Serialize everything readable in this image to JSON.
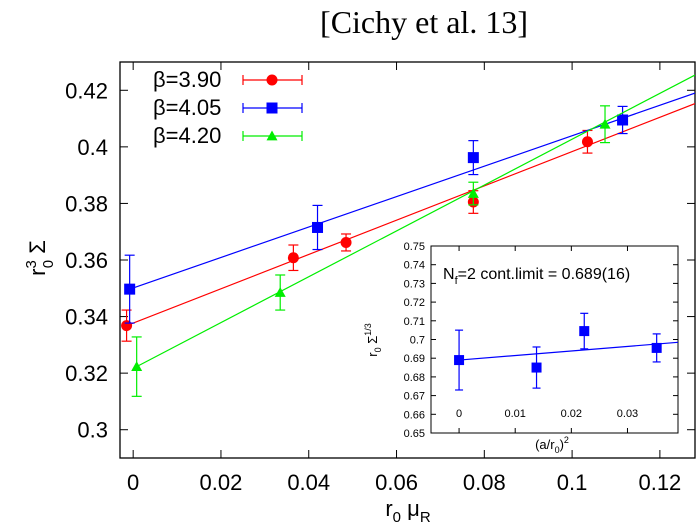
{
  "title": "[Cichy et al. 13]",
  "chart_data": [
    {
      "type": "scatter",
      "xlabel": {
        "base": "r",
        "sub1": "0",
        "mu": " μ",
        "sub2": "R"
      },
      "ylabel": {
        "base": "r",
        "sup": "3",
        "sub": "0",
        "sym": " Σ"
      },
      "xlim": [
        -0.003,
        0.128
      ],
      "ylim": [
        0.29,
        0.43
      ],
      "xticks": [
        0,
        0.02,
        0.04,
        0.06,
        0.08,
        0.1,
        0.12
      ],
      "xtick_labels": [
        "0",
        "0.02",
        "0.04",
        "0.06",
        "0.08",
        "0.1",
        "0.12"
      ],
      "yticks": [
        0.3,
        0.32,
        0.34,
        0.36,
        0.38,
        0.4,
        0.42
      ],
      "ytick_labels": [
        "0.3",
        "0.32",
        "0.34",
        "0.36",
        "0.38",
        "0.4",
        "0.42"
      ],
      "grid": false,
      "legend_position": "top-left",
      "series": [
        {
          "name": "β=3.90",
          "color": "#ff0000",
          "marker": "circle",
          "points": [
            {
              "x": -0.0015,
              "y": 0.3368,
              "err": 0.0055
            },
            {
              "x": 0.0365,
              "y": 0.3608,
              "err": 0.0045
            },
            {
              "x": 0.0485,
              "y": 0.3662,
              "err": 0.003
            },
            {
              "x": 0.0775,
              "y": 0.3805,
              "err": 0.004
            },
            {
              "x": 0.1035,
              "y": 0.4018,
              "err": 0.004
            }
          ],
          "fit": {
            "x": [
              -0.0015,
              0.128
            ],
            "y": [
              0.3368,
              0.4153
            ]
          }
        },
        {
          "name": "β=4.05",
          "color": "#0000ff",
          "marker": "square",
          "points": [
            {
              "x": -0.0008,
              "y": 0.3497,
              "err": 0.012
            },
            {
              "x": 0.042,
              "y": 0.3715,
              "err": 0.0078
            },
            {
              "x": 0.0775,
              "y": 0.3962,
              "err": 0.006
            },
            {
              "x": 0.1115,
              "y": 0.4095,
              "err": 0.0048
            }
          ],
          "fit": {
            "x": [
              -0.0008,
              0.128
            ],
            "y": [
              0.3497,
              0.419
            ]
          }
        },
        {
          "name": "β=4.20",
          "color": "#00ee00",
          "marker": "triangle",
          "points": [
            {
              "x": 0.0008,
              "y": 0.3223,
              "err": 0.0105
            },
            {
              "x": 0.0335,
              "y": 0.3485,
              "err": 0.0062
            },
            {
              "x": 0.0775,
              "y": 0.3835,
              "err": 0.004
            },
            {
              "x": 0.1075,
              "y": 0.408,
              "err": 0.0065
            }
          ],
          "fit": {
            "x": [
              0.0008,
              0.128
            ],
            "y": [
              0.3223,
              0.4254
            ]
          }
        }
      ]
    },
    {
      "type": "scatter",
      "inset": true,
      "annotation": {
        "pre": "N",
        "sub": "f",
        "post": "=2 cont.limit = 0.689(16)"
      },
      "xlabel": {
        "pre": "(a/r",
        "sub": "0",
        "post": ")",
        "sup": "2"
      },
      "ylabel": {
        "base": "r",
        "sub": "0",
        "sym": " Σ",
        "sup": "1/3"
      },
      "xlim": [
        -0.005,
        0.039
      ],
      "ylim": [
        0.65,
        0.75
      ],
      "xticks": [
        0,
        0.01,
        0.02,
        0.03
      ],
      "xtick_labels": [
        "0",
        "0.01",
        "0.02",
        "0.03"
      ],
      "yticks": [
        0.65,
        0.66,
        0.67,
        0.68,
        0.69,
        0.7,
        0.71,
        0.72,
        0.73,
        0.74,
        0.75
      ],
      "ytick_labels": [
        "0.65",
        "0.66",
        "0.67",
        "0.68",
        "0.69",
        "0.7",
        "0.71",
        "0.72",
        "0.73",
        "0.74",
        "0.75"
      ],
      "series": [
        {
          "color": "#0000ff",
          "marker": "square",
          "points": [
            {
              "x": 0,
              "y": 0.689,
              "err": 0.016
            },
            {
              "x": 0.0138,
              "y": 0.685,
              "err": 0.011
            },
            {
              "x": 0.0223,
              "y": 0.7045,
              "err": 0.0095
            },
            {
              "x": 0.0352,
              "y": 0.6955,
              "err": 0.0075
            }
          ],
          "fit": {
            "x": [
              0,
              0.039
            ],
            "y": [
              0.689,
              0.6985
            ]
          }
        }
      ]
    }
  ]
}
